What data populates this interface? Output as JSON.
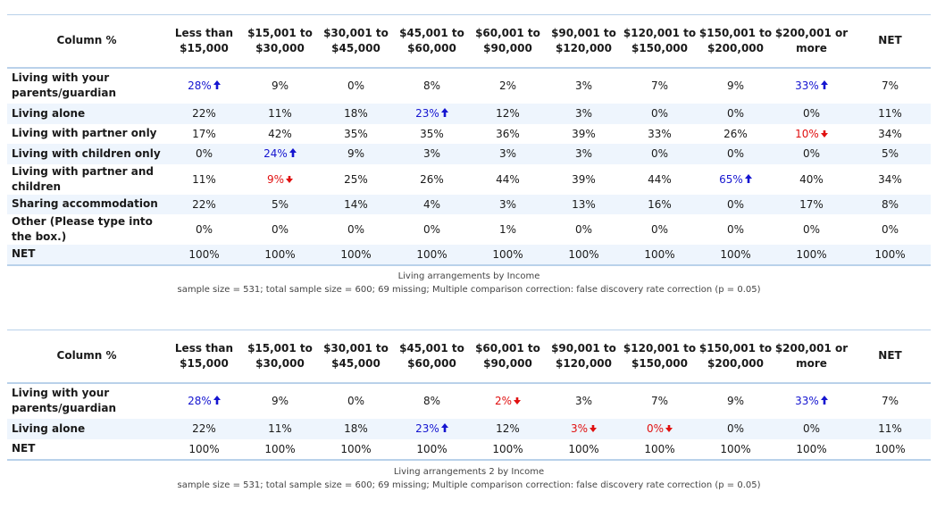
{
  "tables": [
    {
      "corner": "Column %",
      "columns": [
        "Less than $15,000",
        "$15,001 to $30,000",
        "$30,001 to $45,000",
        "$45,001 to $60,000",
        "$60,001 to $90,000",
        "$90,001 to $120,000",
        "$120,001 to $150,000",
        "$150,001 to $200,000",
        "$200,001 or more",
        "NET"
      ],
      "rows": [
        {
          "label": "Living with your parents/guardian",
          "cells": [
            {
              "v": "28%",
              "s": "up"
            },
            {
              "v": "9%"
            },
            {
              "v": "0%"
            },
            {
              "v": "8%"
            },
            {
              "v": "2%"
            },
            {
              "v": "3%"
            },
            {
              "v": "7%"
            },
            {
              "v": "9%"
            },
            {
              "v": "33%",
              "s": "up"
            },
            {
              "v": "7%"
            }
          ]
        },
        {
          "label": "Living alone",
          "cells": [
            {
              "v": "22%"
            },
            {
              "v": "11%"
            },
            {
              "v": "18%"
            },
            {
              "v": "23%",
              "s": "up"
            },
            {
              "v": "12%"
            },
            {
              "v": "3%"
            },
            {
              "v": "0%"
            },
            {
              "v": "0%"
            },
            {
              "v": "0%"
            },
            {
              "v": "11%"
            }
          ]
        },
        {
          "label": "Living with partner only",
          "cells": [
            {
              "v": "17%"
            },
            {
              "v": "42%"
            },
            {
              "v": "35%"
            },
            {
              "v": "35%"
            },
            {
              "v": "36%"
            },
            {
              "v": "39%"
            },
            {
              "v": "33%"
            },
            {
              "v": "26%"
            },
            {
              "v": "10%",
              "s": "down"
            },
            {
              "v": "34%"
            }
          ]
        },
        {
          "label": "Living with children only",
          "cells": [
            {
              "v": "0%"
            },
            {
              "v": "24%",
              "s": "up"
            },
            {
              "v": "9%"
            },
            {
              "v": "3%"
            },
            {
              "v": "3%"
            },
            {
              "v": "3%"
            },
            {
              "v": "0%"
            },
            {
              "v": "0%"
            },
            {
              "v": "0%"
            },
            {
              "v": "5%"
            }
          ]
        },
        {
          "label": "Living with partner and children",
          "cells": [
            {
              "v": "11%"
            },
            {
              "v": "9%",
              "s": "down"
            },
            {
              "v": "25%"
            },
            {
              "v": "26%"
            },
            {
              "v": "44%"
            },
            {
              "v": "39%"
            },
            {
              "v": "44%"
            },
            {
              "v": "65%",
              "s": "up"
            },
            {
              "v": "40%"
            },
            {
              "v": "34%"
            }
          ]
        },
        {
          "label": "Sharing accommodation",
          "cells": [
            {
              "v": "22%"
            },
            {
              "v": "5%"
            },
            {
              "v": "14%"
            },
            {
              "v": "4%"
            },
            {
              "v": "3%"
            },
            {
              "v": "13%"
            },
            {
              "v": "16%"
            },
            {
              "v": "0%"
            },
            {
              "v": "17%"
            },
            {
              "v": "8%"
            }
          ]
        },
        {
          "label": "Other (Please type into the box.)",
          "cells": [
            {
              "v": "0%"
            },
            {
              "v": "0%"
            },
            {
              "v": "0%"
            },
            {
              "v": "0%"
            },
            {
              "v": "1%"
            },
            {
              "v": "0%"
            },
            {
              "v": "0%"
            },
            {
              "v": "0%"
            },
            {
              "v": "0%"
            },
            {
              "v": "0%"
            }
          ]
        },
        {
          "label": "NET",
          "cells": [
            {
              "v": "100%"
            },
            {
              "v": "100%"
            },
            {
              "v": "100%"
            },
            {
              "v": "100%"
            },
            {
              "v": "100%"
            },
            {
              "v": "100%"
            },
            {
              "v": "100%"
            },
            {
              "v": "100%"
            },
            {
              "v": "100%"
            },
            {
              "v": "100%"
            }
          ]
        }
      ],
      "title": "Living arrangements by Income",
      "footnote": "sample size = 531; total sample size = 600; 69 missing; Multiple comparison correction: false discovery rate correction (p = 0.05)"
    },
    {
      "corner": "Column %",
      "columns": [
        "Less than $15,000",
        "$15,001 to $30,000",
        "$30,001 to $45,000",
        "$45,001 to $60,000",
        "$60,001 to $90,000",
        "$90,001 to $120,000",
        "$120,001 to $150,000",
        "$150,001 to $200,000",
        "$200,001 or more",
        "NET"
      ],
      "rows": [
        {
          "label": "Living with your parents/guardian",
          "cells": [
            {
              "v": "28%",
              "s": "up"
            },
            {
              "v": "9%"
            },
            {
              "v": "0%"
            },
            {
              "v": "8%"
            },
            {
              "v": "2%",
              "s": "down"
            },
            {
              "v": "3%"
            },
            {
              "v": "7%"
            },
            {
              "v": "9%"
            },
            {
              "v": "33%",
              "s": "up"
            },
            {
              "v": "7%"
            }
          ]
        },
        {
          "label": "Living alone",
          "cells": [
            {
              "v": "22%"
            },
            {
              "v": "11%"
            },
            {
              "v": "18%"
            },
            {
              "v": "23%",
              "s": "up"
            },
            {
              "v": "12%"
            },
            {
              "v": "3%",
              "s": "down"
            },
            {
              "v": "0%",
              "s": "down"
            },
            {
              "v": "0%"
            },
            {
              "v": "0%"
            },
            {
              "v": "11%"
            }
          ]
        },
        {
          "label": "NET",
          "cells": [
            {
              "v": "100%"
            },
            {
              "v": "100%"
            },
            {
              "v": "100%"
            },
            {
              "v": "100%"
            },
            {
              "v": "100%"
            },
            {
              "v": "100%"
            },
            {
              "v": "100%"
            },
            {
              "v": "100%"
            },
            {
              "v": "100%"
            },
            {
              "v": "100%"
            }
          ]
        }
      ],
      "title": "Living arrangements 2 by Income",
      "footnote": "sample size = 531; total sample size = 600; 69 missing; Multiple comparison correction: false discovery rate correction (p = 0.05)"
    }
  ],
  "colors": {
    "up": "#1515d0",
    "down": "#e01010",
    "alt_row": "#eef5fd",
    "rule": "#b9d1ea"
  },
  "icons": {
    "up": "arrow-up-icon",
    "down": "arrow-down-icon"
  }
}
